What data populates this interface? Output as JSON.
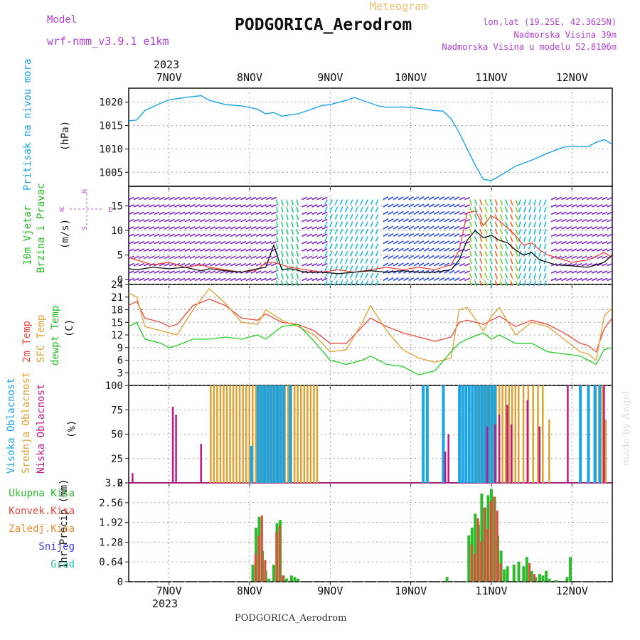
{
  "header": {
    "meteogram": "Meteogram",
    "model_label": "Model",
    "model_name": "wrf-nmm_v3.9.1 e1km",
    "station": "PODGORICA_Aerodrom",
    "lonlat": "lon,lat (19.25E, 42.3625N)",
    "elevation": "Nadmorska Visina 39m",
    "model_elevation": "Nadmorska Visina u modelu 52.8106m",
    "year_top": "2023",
    "year_bottom": "2023",
    "footer": "PODGORICA_Aerodrom",
    "watermark": "made by Angel"
  },
  "colors": {
    "pressure": "#1aa4e6",
    "wind_speed": "#111111",
    "gust": "#ee3a2a",
    "temp2m": "#e8473c",
    "sfc_temp": "#e0a030",
    "dewpt": "#22cc22",
    "cloud_high": "#1aa4e6",
    "cloud_mid": "#e0a030",
    "cloud_low": "#c01888",
    "precip_total": "#2bbb2b",
    "precip_conv": "#e8473c",
    "grid": "#999999"
  },
  "chart_data": [
    {
      "type": "line",
      "panel": "pressure",
      "ylabel_lines": [
        "Pritisak na nivou mora",
        "(hPa)"
      ],
      "ylim": [
        1002,
        1023
      ],
      "yticks": [
        1005,
        1010,
        1015,
        1020
      ],
      "x_unit": "day of Nov 2023",
      "x": [
        6.5,
        6.6,
        6.7,
        6.9,
        7.0,
        7.2,
        7.4,
        7.5,
        7.7,
        7.9,
        8.1,
        8.2,
        8.3,
        8.4,
        8.5,
        8.6,
        8.8,
        8.9,
        9.0,
        9.2,
        9.3,
        9.4,
        9.6,
        9.7,
        9.9,
        10.1,
        10.3,
        10.4,
        10.5,
        10.6,
        10.7,
        10.8,
        10.9,
        11.0,
        11.1,
        11.3,
        11.5,
        11.7,
        11.9,
        12.0,
        12.2,
        12.3,
        12.4,
        12.5
      ],
      "values": [
        1016.0,
        1016.2,
        1018.2,
        1019.8,
        1020.5,
        1021.0,
        1021.4,
        1020.4,
        1019.5,
        1019.2,
        1018.5,
        1017.5,
        1017.8,
        1017.0,
        1017.3,
        1017.5,
        1018.7,
        1019.3,
        1019.5,
        1020.4,
        1021.0,
        1020.4,
        1019.2,
        1018.9,
        1019.0,
        1018.7,
        1018.2,
        1018.1,
        1016.5,
        1013.5,
        1010.0,
        1006.5,
        1003.5,
        1003.2,
        1004.2,
        1006.3,
        1007.6,
        1009.1,
        1010.4,
        1010.6,
        1010.5,
        1011.4,
        1012.0,
        1011.0
      ]
    },
    {
      "type": "line",
      "panel": "wind",
      "ylabel_lines": [
        "10m Vjetar",
        "Brzina i Pravac",
        "(m/s)"
      ],
      "compass_labels": [
        "N",
        "E",
        "W",
        "S"
      ],
      "ylim": [
        -1,
        19
      ],
      "yticks": [
        0,
        5,
        10,
        15
      ],
      "x_unit": "day of Nov 2023",
      "series": [
        {
          "name": "wind_speed",
          "x": [
            6.5,
            6.6,
            6.8,
            7.0,
            7.2,
            7.4,
            7.5,
            7.7,
            7.9,
            8.1,
            8.2,
            8.3,
            8.4,
            8.5,
            8.7,
            8.9,
            9.1,
            9.3,
            9.5,
            9.7,
            9.9,
            10.1,
            10.3,
            10.5,
            10.6,
            10.7,
            10.8,
            10.9,
            11.0,
            11.1,
            11.2,
            11.3,
            11.4,
            11.5,
            11.6,
            11.7,
            11.8,
            12.0,
            12.2,
            12.4,
            12.5
          ],
          "values": [
            2.2,
            2.0,
            2.5,
            2.2,
            2.5,
            1.8,
            2.2,
            1.8,
            1.5,
            2.2,
            2.5,
            7.0,
            2.0,
            2.2,
            1.5,
            1.5,
            1.2,
            1.5,
            1.8,
            1.5,
            1.8,
            1.5,
            1.5,
            2.0,
            4.0,
            8.0,
            10.0,
            8.5,
            9.0,
            8.0,
            7.5,
            6.0,
            5.0,
            5.5,
            4.0,
            3.5,
            3.0,
            2.8,
            2.5,
            3.5,
            5.0
          ]
        },
        {
          "name": "gust",
          "x": [
            6.5,
            6.6,
            6.8,
            7.0,
            7.2,
            7.4,
            7.5,
            7.7,
            7.9,
            8.1,
            8.2,
            8.3,
            8.4,
            8.5,
            8.7,
            8.9,
            9.1,
            9.3,
            9.5,
            9.7,
            9.9,
            10.1,
            10.3,
            10.5,
            10.6,
            10.7,
            10.8,
            10.9,
            11.0,
            11.1,
            11.2,
            11.3,
            11.4,
            11.5,
            11.6,
            11.7,
            11.8,
            12.0,
            12.2,
            12.4,
            12.5
          ],
          "values": [
            4.5,
            4.0,
            3.0,
            3.5,
            2.5,
            3.0,
            2.5,
            2.0,
            1.5,
            2.0,
            3.5,
            3.5,
            3.0,
            2.5,
            2.0,
            1.5,
            2.0,
            1.5,
            2.0,
            2.5,
            2.0,
            2.5,
            2.0,
            3.0,
            6.0,
            13.5,
            14.0,
            11.0,
            13.0,
            12.0,
            10.5,
            9.0,
            7.0,
            7.5,
            6.0,
            5.0,
            4.5,
            3.5,
            4.0,
            5.5,
            4.5
          ]
        }
      ]
    },
    {
      "type": "line",
      "panel": "temperature",
      "ylabel_lines": [
        "2m Temp",
        "SFC Temp",
        "dewpt Temp",
        "(C)"
      ],
      "ylim": [
        0,
        24
      ],
      "yticks": [
        3,
        6,
        9,
        12,
        15,
        18,
        21,
        24
      ],
      "x_unit": "day of Nov 2023",
      "series": [
        {
          "name": "2m Temp",
          "x": [
            6.5,
            6.6,
            6.7,
            6.9,
            7.0,
            7.1,
            7.3,
            7.5,
            7.7,
            7.9,
            8.1,
            8.2,
            8.4,
            8.6,
            8.8,
            9.0,
            9.2,
            9.4,
            9.5,
            9.7,
            9.9,
            10.1,
            10.3,
            10.5,
            10.6,
            10.7,
            10.9,
            11.0,
            11.1,
            11.3,
            11.5,
            11.7,
            11.9,
            12.1,
            12.2,
            12.3,
            12.4,
            12.5
          ],
          "values": [
            19.0,
            20.0,
            16.0,
            15.0,
            14.0,
            14.5,
            19.0,
            20.5,
            19.0,
            16.0,
            15.5,
            17.0,
            15.0,
            14.5,
            13.0,
            10.0,
            10.0,
            14.0,
            16.0,
            14.0,
            12.5,
            11.5,
            10.5,
            11.5,
            15.0,
            15.5,
            14.5,
            15.5,
            16.5,
            14.0,
            15.5,
            14.5,
            12.5,
            10.0,
            9.5,
            8.0,
            13.5,
            16.0
          ]
        },
        {
          "name": "SFC Temp",
          "x": [
            6.5,
            6.6,
            6.7,
            6.9,
            7.0,
            7.1,
            7.3,
            7.5,
            7.7,
            7.9,
            8.1,
            8.2,
            8.4,
            8.6,
            8.8,
            9.0,
            9.2,
            9.4,
            9.5,
            9.7,
            9.9,
            10.1,
            10.3,
            10.5,
            10.6,
            10.7,
            10.9,
            11.0,
            11.1,
            11.3,
            11.5,
            11.7,
            11.9,
            12.1,
            12.2,
            12.3,
            12.4,
            12.5
          ],
          "values": [
            22.0,
            21.0,
            14.0,
            13.0,
            12.5,
            12.0,
            18.0,
            23.0,
            19.5,
            15.0,
            14.5,
            18.0,
            15.5,
            14.0,
            12.0,
            8.0,
            8.5,
            15.0,
            19.0,
            13.0,
            8.5,
            6.5,
            5.5,
            6.5,
            18.0,
            18.5,
            13.0,
            16.5,
            18.5,
            12.0,
            15.0,
            14.0,
            11.0,
            8.0,
            7.5,
            6.0,
            16.5,
            18.5
          ]
        },
        {
          "name": "dewpt Temp",
          "x": [
            6.5,
            6.6,
            6.7,
            6.9,
            7.0,
            7.1,
            7.3,
            7.5,
            7.7,
            7.9,
            8.1,
            8.2,
            8.4,
            8.6,
            8.8,
            9.0,
            9.2,
            9.4,
            9.5,
            9.7,
            9.9,
            10.1,
            10.3,
            10.5,
            10.6,
            10.7,
            10.9,
            11.0,
            11.1,
            11.3,
            11.5,
            11.7,
            11.9,
            12.1,
            12.2,
            12.3,
            12.4,
            12.5
          ],
          "values": [
            14.0,
            15.0,
            11.0,
            10.0,
            9.0,
            9.5,
            11.0,
            11.0,
            11.5,
            11.0,
            12.0,
            11.0,
            14.0,
            14.5,
            10.5,
            6.0,
            5.0,
            6.0,
            7.0,
            5.0,
            4.5,
            2.5,
            3.5,
            8.0,
            10.0,
            11.0,
            12.5,
            11.0,
            12.0,
            10.0,
            10.0,
            8.0,
            7.5,
            7.0,
            6.0,
            5.0,
            8.5,
            9.0
          ]
        }
      ]
    },
    {
      "type": "bar",
      "panel": "cloud",
      "ylabel_lines": [
        "Visoka Oblacnost",
        "Srednja Oblacnost",
        "Niska Oblacnost",
        "(%)"
      ],
      "ylim": [
        0,
        100
      ],
      "yticks": [
        0,
        25,
        50,
        75,
        100
      ],
      "x_unit": "day of Nov 2023",
      "series": [
        {
          "name": "Srednja Oblacnost",
          "x": [
            7.52,
            7.56,
            7.6,
            7.64,
            7.68,
            7.72,
            7.76,
            7.8,
            7.84,
            7.88,
            7.92,
            7.96,
            8.0,
            8.04,
            8.08,
            8.12,
            8.16,
            8.2,
            8.24,
            8.28,
            8.32,
            8.36,
            8.4,
            8.44,
            8.48,
            8.52,
            8.56,
            8.6,
            8.64,
            8.68,
            8.72,
            8.76,
            8.8,
            8.84,
            10.82,
            10.86,
            10.9,
            10.94,
            10.98,
            11.02,
            11.06,
            11.1,
            11.14,
            11.18,
            11.22,
            11.26,
            11.3,
            11.34,
            11.4,
            11.46,
            11.52,
            11.58,
            11.64,
            11.72,
            12.3,
            12.34,
            12.38,
            12.42
          ],
          "values": [
            100,
            100,
            100,
            100,
            100,
            100,
            100,
            100,
            100,
            100,
            100,
            100,
            100,
            100,
            100,
            100,
            100,
            100,
            100,
            100,
            100,
            100,
            100,
            100,
            100,
            100,
            100,
            100,
            100,
            100,
            100,
            100,
            100,
            100,
            100,
            100,
            100,
            100,
            100,
            100,
            100,
            100,
            100,
            100,
            100,
            100,
            100,
            100,
            100,
            100,
            100,
            100,
            100,
            65,
            100,
            100,
            100,
            65
          ]
        },
        {
          "name": "Visoka Oblacnost",
          "x": [
            8.02,
            8.1,
            8.14,
            8.18,
            8.22,
            8.26,
            8.3,
            8.34,
            8.38,
            8.42,
            8.5,
            10.15,
            10.2,
            10.4,
            10.6,
            10.64,
            10.68,
            10.72,
            10.76,
            10.8,
            10.84,
            10.88,
            10.92,
            10.96,
            11.0,
            11.04,
            12.1,
            12.2,
            12.28,
            12.34
          ],
          "values": [
            38,
            100,
            100,
            100,
            100,
            100,
            100,
            100,
            100,
            100,
            100,
            100,
            100,
            100,
            100,
            100,
            100,
            100,
            100,
            100,
            100,
            100,
            100,
            100,
            100,
            100,
            100,
            100,
            100,
            100
          ]
        },
        {
          "name": "Niska Oblacnost",
          "x": [
            6.55,
            7.05,
            7.09,
            7.4,
            10.43,
            10.47,
            10.95,
            11.05,
            11.1,
            11.2,
            11.25,
            11.45,
            11.6,
            11.95,
            12.4
          ],
          "values": [
            10,
            78,
            70,
            40,
            32,
            50,
            58,
            60,
            70,
            80,
            60,
            85,
            58,
            100,
            100
          ]
        }
      ]
    },
    {
      "type": "bar",
      "panel": "precip",
      "ylabel_lines": [
        "1hr Precip (mm)"
      ],
      "legend": [
        "Ukupna Kisa",
        "Konvek.Kisa",
        "Zaledj.Kisa",
        "Snijeg",
        "Grad"
      ],
      "ylim": [
        0,
        3.2
      ],
      "yticks": [
        0,
        0.64,
        1.28,
        1.92,
        2.56,
        3.2
      ],
      "x_unit": "day of Nov 2023",
      "series": [
        {
          "name": "Ukupna Kisa",
          "x": [
            8.04,
            8.08,
            8.12,
            8.16,
            8.2,
            8.24,
            8.3,
            8.34,
            8.38,
            8.42,
            8.46,
            8.52,
            8.56,
            8.6,
            10.45,
            10.72,
            10.76,
            10.8,
            10.84,
            10.88,
            10.92,
            10.96,
            11.0,
            11.04,
            11.08,
            11.12,
            11.16,
            11.2,
            11.28,
            11.34,
            11.4,
            11.44,
            11.5,
            11.55,
            11.6,
            11.64,
            11.68,
            11.72,
            11.8,
            11.94,
            11.98
          ],
          "values": [
            0.55,
            1.75,
            2.1,
            1.0,
            0.35,
            0.1,
            0.55,
            1.9,
            2.0,
            0.2,
            0.1,
            0.2,
            0.15,
            0.1,
            0.15,
            1.5,
            1.75,
            2.2,
            1.85,
            2.85,
            2.4,
            2.8,
            3.0,
            2.75,
            1.5,
            1.0,
            0.4,
            0.5,
            0.55,
            0.65,
            0.5,
            0.8,
            0.35,
            0.15,
            0.25,
            0.2,
            0.35,
            0.1,
            0.05,
            0.15,
            0.8
          ]
        },
        {
          "name": "Konvek.Kisa",
          "x": [
            8.06,
            8.1,
            8.14,
            8.18,
            8.32,
            8.36,
            8.4,
            10.74,
            10.78,
            10.82,
            10.86,
            10.9,
            10.94,
            10.98,
            11.02,
            11.06,
            11.1,
            11.46,
            11.52
          ],
          "values": [
            0.9,
            1.5,
            2.15,
            0.7,
            1.6,
            1.8,
            0.2,
            1.2,
            0.9,
            2.05,
            1.3,
            2.4,
            1.7,
            2.6,
            2.75,
            2.3,
            0.6,
            0.6,
            0.25
          ]
        }
      ]
    }
  ],
  "x_axis": {
    "tick_labels": [
      "7NOV",
      "8NOV",
      "9NOV",
      "10NOV",
      "11NOV",
      "12NOV"
    ],
    "tick_values": [
      7,
      8,
      9,
      10,
      11,
      12
    ],
    "range": [
      6.5,
      12.5
    ]
  }
}
